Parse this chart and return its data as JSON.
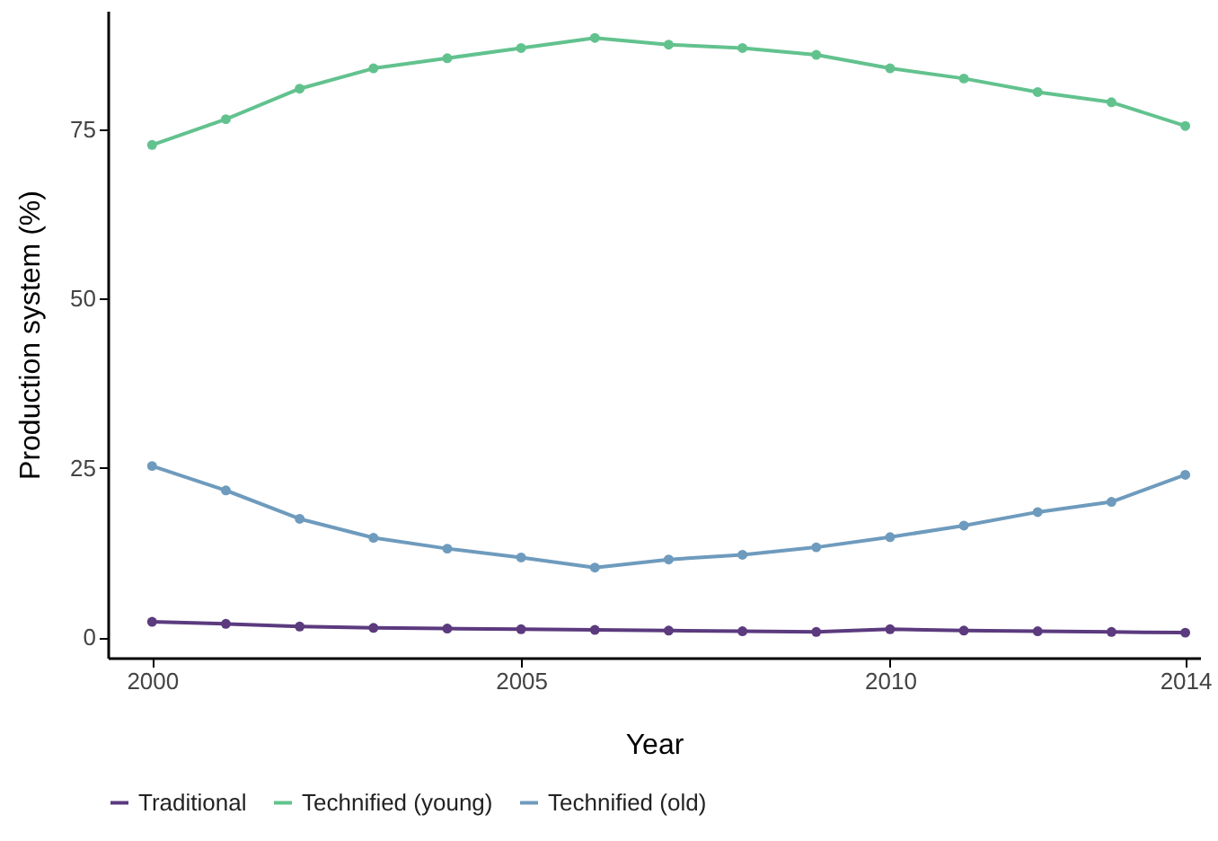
{
  "chart_data": {
    "type": "line",
    "xlabel": "Year",
    "ylabel": "Production system (%)",
    "x": [
      2000,
      2001,
      2002,
      2003,
      2004,
      2005,
      2006,
      2007,
      2008,
      2009,
      2010,
      2011,
      2012,
      2013,
      2014
    ],
    "series": [
      {
        "name": "Traditional",
        "color": "#5b3a7e",
        "values": [
          2.3,
          2.0,
          1.6,
          1.4,
          1.3,
          1.2,
          1.1,
          1.0,
          0.9,
          0.8,
          1.2,
          1.0,
          0.9,
          0.8,
          0.7
        ]
      },
      {
        "name": "Technified (young)",
        "color": "#62c28e",
        "values": [
          72.7,
          76.5,
          81,
          84,
          85.5,
          87,
          88.5,
          87.5,
          87,
          86,
          84,
          82.5,
          80.5,
          79,
          75.5
        ]
      },
      {
        "name": "Technified (old)",
        "color": "#6e9bbd",
        "values": [
          25.3,
          21.7,
          17.5,
          14.7,
          13.1,
          11.8,
          10.3,
          11.5,
          12.2,
          13.3,
          14.8,
          16.5,
          18.5,
          20,
          24
        ]
      }
    ],
    "xlim": [
      1999.4,
      2014.2
    ],
    "xticks": [
      2000,
      2005,
      2010,
      2014
    ],
    "ylim": [
      -3,
      92.5
    ],
    "yticks": [
      0,
      25,
      50,
      75
    ],
    "grid": false,
    "legend": "bottom",
    "marker": "circle",
    "line_style": "solid"
  }
}
